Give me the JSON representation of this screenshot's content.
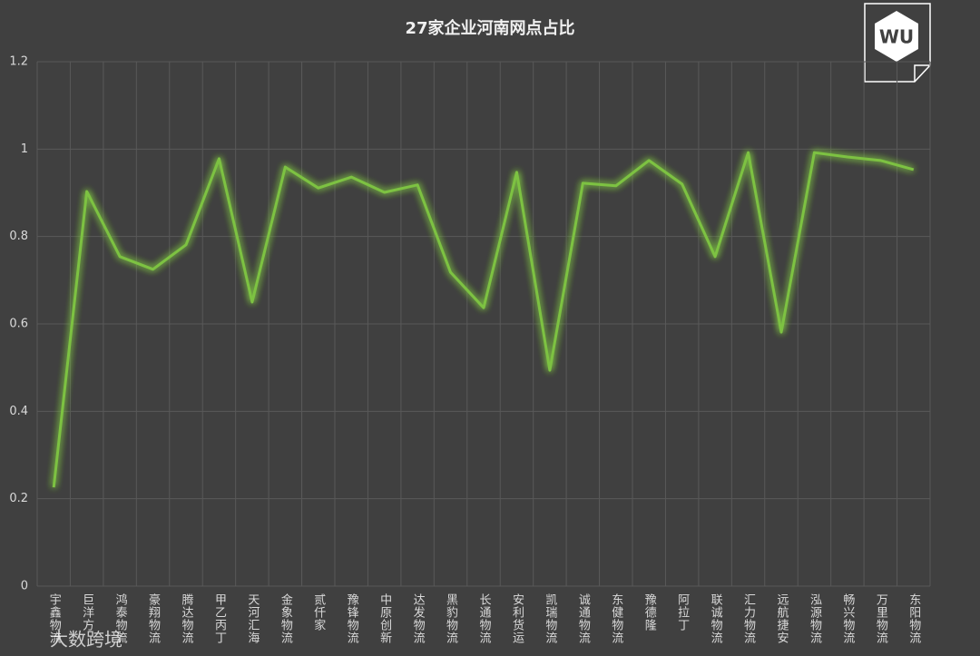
{
  "chart_data": {
    "type": "line",
    "title": "27家企业河南网点占比",
    "categories": [
      "宇鑫物流",
      "巨洋方",
      "鸿泰物流",
      "豪翔物流",
      "腾达物流",
      "甲乙丙丁",
      "天河汇海",
      "金象物流",
      "贰仟家",
      "豫锋物流",
      "中原创新",
      "达发物流",
      "黑豹物流",
      "长通物流",
      "安利货运",
      "凯瑞物流",
      "诚通物流",
      "东健物流",
      "豫德隆",
      "阿拉丁",
      "联诚物流",
      "汇力物流",
      "远航捷安",
      "泓源物流",
      "畅兴物流",
      "万里物流",
      "东阳物流"
    ],
    "values": [
      0.226,
      0.903,
      0.754,
      0.725,
      0.781,
      0.978,
      0.65,
      0.959,
      0.911,
      0.936,
      0.901,
      0.918,
      0.718,
      0.637,
      0.947,
      0.494,
      0.922,
      0.916,
      0.974,
      0.92,
      0.754,
      0.992,
      0.581,
      0.992,
      0.982,
      0.974,
      0.953
    ],
    "color": "#7dc242",
    "ylim": [
      0,
      1.2
    ],
    "yticks": [
      0,
      0.2,
      0.4,
      0.6,
      0.8,
      1,
      1.2
    ],
    "grid": true,
    "watermark": "大数跨境"
  }
}
